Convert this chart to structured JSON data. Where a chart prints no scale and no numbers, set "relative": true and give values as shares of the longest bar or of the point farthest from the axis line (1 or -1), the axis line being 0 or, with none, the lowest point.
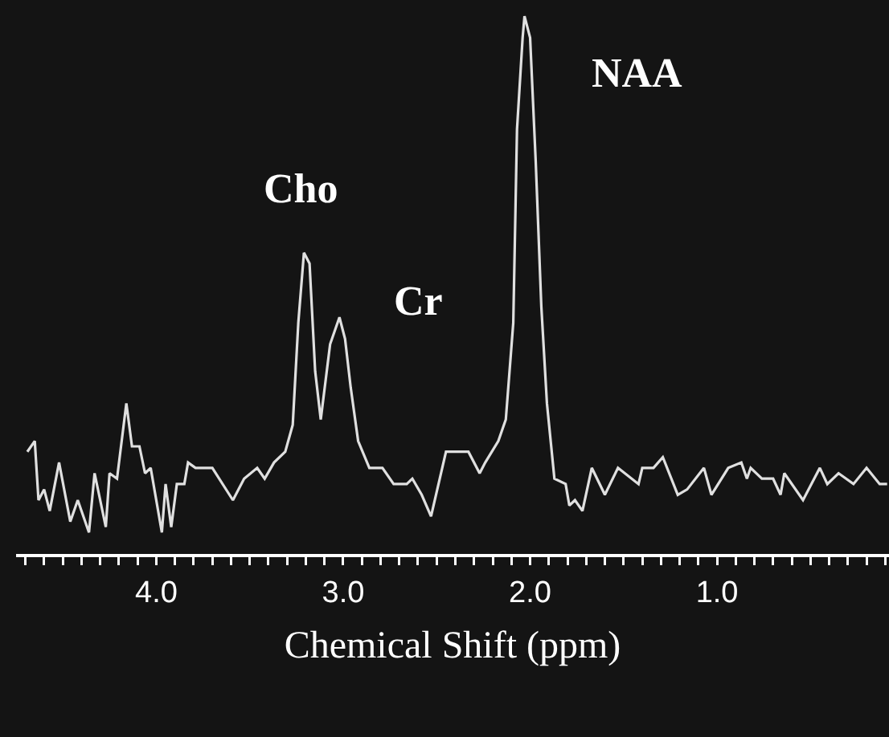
{
  "chart_data": {
    "type": "line",
    "relative": true,
    "xlabel": "Chemical Shift (ppm)",
    "color": "#e0e0e0",
    "x": [
      4.69,
      4.65,
      4.63,
      4.6,
      4.57,
      4.52,
      4.46,
      4.42,
      4.36,
      4.33,
      4.27,
      4.25,
      4.21,
      4.16,
      4.13,
      4.09,
      4.06,
      4.03,
      3.97,
      3.95,
      3.92,
      3.89,
      3.85,
      3.83,
      3.79,
      3.7,
      3.59,
      3.53,
      3.46,
      3.42,
      3.37,
      3.31,
      3.27,
      3.24,
      3.21,
      3.18,
      3.15,
      3.12,
      3.07,
      3.02,
      2.99,
      2.96,
      2.92,
      2.86,
      2.79,
      2.73,
      2.66,
      2.63,
      2.58,
      2.53,
      2.45,
      2.39,
      2.33,
      2.27,
      2.24,
      2.17,
      2.13,
      2.09,
      2.07,
      2.04,
      2.03,
      2.0,
      1.97,
      1.94,
      1.91,
      1.87,
      1.81,
      1.79,
      1.76,
      1.72,
      1.67,
      1.6,
      1.53,
      1.42,
      1.4,
      1.34,
      1.29,
      1.21,
      1.16,
      1.07,
      1.03,
      0.94,
      0.87,
      0.84,
      0.82,
      0.76,
      0.7,
      0.66,
      0.64,
      0.54,
      0.45,
      0.41,
      0.35,
      0.27,
      0.2,
      0.13,
      0.09
    ],
    "values": [
      0.19,
      0.21,
      0.1,
      0.12,
      0.08,
      0.17,
      0.06,
      0.1,
      0.04,
      0.15,
      0.05,
      0.15,
      0.14,
      0.28,
      0.2,
      0.2,
      0.15,
      0.16,
      0.04,
      0.13,
      0.05,
      0.13,
      0.13,
      0.17,
      0.16,
      0.16,
      0.1,
      0.14,
      0.16,
      0.14,
      0.17,
      0.19,
      0.24,
      0.43,
      0.56,
      0.54,
      0.34,
      0.25,
      0.39,
      0.44,
      0.4,
      0.31,
      0.21,
      0.16,
      0.16,
      0.13,
      0.13,
      0.14,
      0.11,
      0.07,
      0.19,
      0.19,
      0.19,
      0.15,
      0.17,
      0.21,
      0.25,
      0.43,
      0.79,
      0.96,
      1.0,
      0.96,
      0.73,
      0.46,
      0.28,
      0.14,
      0.13,
      0.09,
      0.1,
      0.08,
      0.16,
      0.11,
      0.16,
      0.13,
      0.16,
      0.16,
      0.18,
      0.11,
      0.12,
      0.16,
      0.11,
      0.16,
      0.17,
      0.14,
      0.16,
      0.14,
      0.14,
      0.11,
      0.15,
      0.1,
      0.16,
      0.13,
      0.15,
      0.13,
      0.16,
      0.13,
      0.13
    ],
    "xlim": [
      4.75,
      0.08
    ],
    "xticks": [
      {
        "value": 4.7,
        "label": null
      },
      {
        "value": 4.6,
        "label": null
      },
      {
        "value": 4.5,
        "label": null
      },
      {
        "value": 4.4,
        "label": null
      },
      {
        "value": 4.3,
        "label": null
      },
      {
        "value": 4.2,
        "label": null
      },
      {
        "value": 4.1,
        "label": null
      },
      {
        "value": 4.0,
        "label": "4.0"
      },
      {
        "value": 3.9,
        "label": null
      },
      {
        "value": 3.8,
        "label": null
      },
      {
        "value": 3.7,
        "label": null
      },
      {
        "value": 3.6,
        "label": null
      },
      {
        "value": 3.5,
        "label": null
      },
      {
        "value": 3.4,
        "label": null
      },
      {
        "value": 3.3,
        "label": null
      },
      {
        "value": 3.2,
        "label": null
      },
      {
        "value": 3.1,
        "label": null
      },
      {
        "value": 3.0,
        "label": "3.0"
      },
      {
        "value": 2.9,
        "label": null
      },
      {
        "value": 2.8,
        "label": null
      },
      {
        "value": 2.7,
        "label": null
      },
      {
        "value": 2.6,
        "label": null
      },
      {
        "value": 2.5,
        "label": null
      },
      {
        "value": 2.4,
        "label": null
      },
      {
        "value": 2.3,
        "label": null
      },
      {
        "value": 2.2,
        "label": null
      },
      {
        "value": 2.1,
        "label": null
      },
      {
        "value": 2.0,
        "label": "2.0"
      },
      {
        "value": 1.9,
        "label": null
      },
      {
        "value": 1.8,
        "label": null
      },
      {
        "value": 1.7,
        "label": null
      },
      {
        "value": 1.6,
        "label": null
      },
      {
        "value": 1.5,
        "label": null
      },
      {
        "value": 1.4,
        "label": null
      },
      {
        "value": 1.3,
        "label": null
      },
      {
        "value": 1.2,
        "label": null
      },
      {
        "value": 1.1,
        "label": null
      },
      {
        "value": 1.0,
        "label": "1.0"
      },
      {
        "value": 0.9,
        "label": null
      },
      {
        "value": 0.8,
        "label": null
      },
      {
        "value": 0.7,
        "label": null
      },
      {
        "value": 0.6,
        "label": null
      },
      {
        "value": 0.5,
        "label": null
      },
      {
        "value": 0.4,
        "label": null
      },
      {
        "value": 0.3,
        "label": null
      },
      {
        "value": 0.2,
        "label": null
      },
      {
        "value": 0.1,
        "label": null
      }
    ],
    "annotations": [
      {
        "text": "Cho",
        "x": 3.21,
        "y": 0.56
      },
      {
        "text": "Cr",
        "x": 3.02,
        "y": 0.44
      },
      {
        "text": "NAA",
        "x": 2.03,
        "y": 1.0
      }
    ]
  }
}
